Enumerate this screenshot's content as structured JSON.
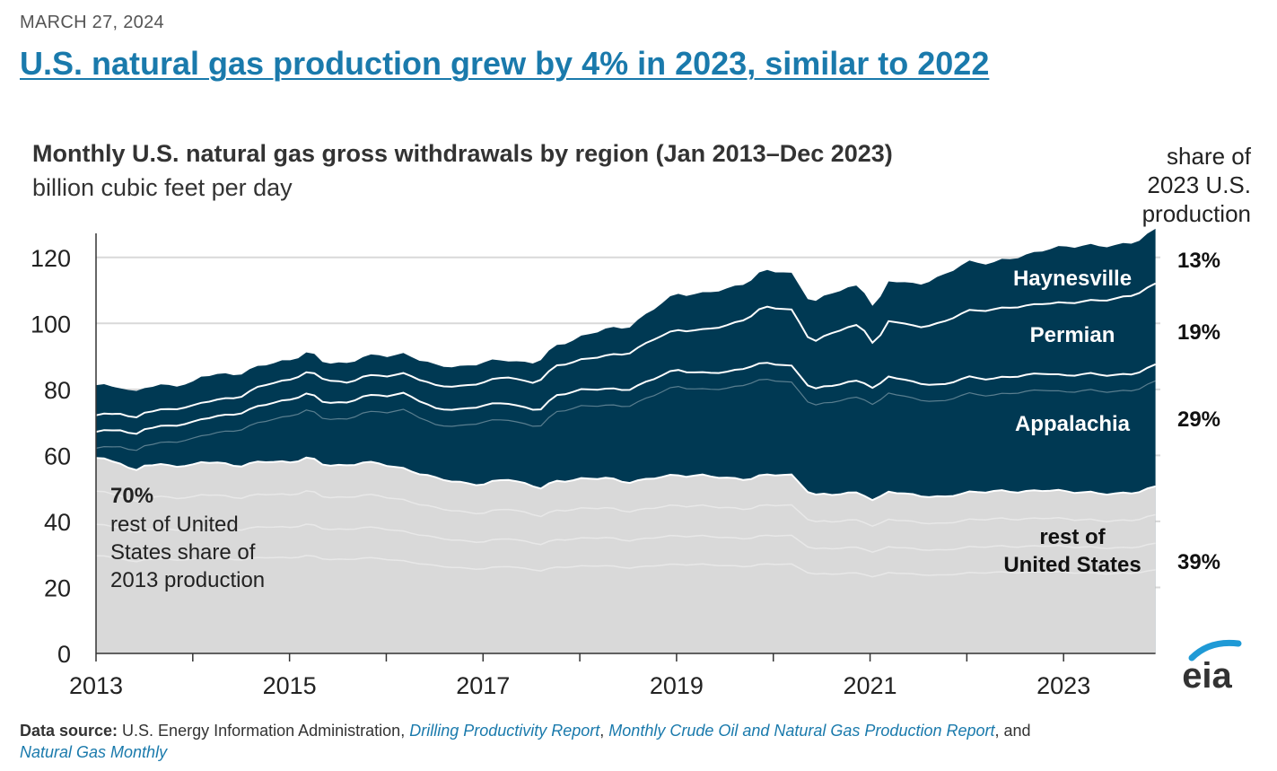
{
  "date": "MARCH 27, 2024",
  "headline": "U.S. natural gas production grew by 4% in 2023, similar to 2022",
  "share_header": [
    "share of",
    "2023 U.S.",
    "production"
  ],
  "source": {
    "label": "Data source:",
    "text_1": " U.S. Energy Information Administration, ",
    "link_1": "Drilling Productivity Report",
    "sep_1": ", ",
    "link_2": "Monthly Crude Oil and Natural Gas Production Report",
    "sep_2": ", and",
    "link_3": "Natural Gas Monthly"
  },
  "logo_text": "eia",
  "colors": {
    "dark_area": "#003953",
    "light_area": "#d9d9d9",
    "separator": "#ffffff",
    "headline_link": "#1a7aac",
    "grid": "#d9d9d9"
  },
  "chart_data": {
    "type": "area",
    "stacked": true,
    "title": "Monthly U.S. natural gas gross withdrawals by region  (Jan 2013–Dec 2023)",
    "subtitle": "billion cubic feet per day",
    "ylim": [
      0,
      130
    ],
    "yticks": [
      "0",
      "20",
      "40",
      "60",
      "80",
      "100",
      "120"
    ],
    "xticks": [
      "2013",
      "2015",
      "2017",
      "2019",
      "2021",
      "2023"
    ],
    "x_start": "Jan 2013",
    "x_end": "Dec 2023",
    "grid": "horizontal",
    "annotation_2013": {
      "pct": "70%",
      "lines": [
        "rest of United",
        "States share of",
        "2013 production"
      ]
    },
    "series_labels": [
      {
        "name": "Haynesville",
        "lines": [
          "Haynesville"
        ],
        "share": "13%"
      },
      {
        "name": "Permian",
        "lines": [
          "Permian"
        ],
        "share": "19%"
      },
      {
        "name": "Appalachia",
        "lines": [
          "Appalachia"
        ],
        "share": "29%"
      },
      {
        "name": "rest of United States",
        "lines": [
          "rest of",
          "United States"
        ],
        "share": "39%"
      }
    ],
    "keypoints": [
      {
        "year": 2013.0,
        "rest": 59,
        "appalachia": 67,
        "permian": 72,
        "total": 81
      },
      {
        "year": 2013.25,
        "rest": 58,
        "appalachia": 68,
        "permian": 73,
        "total": 81
      },
      {
        "year": 2013.4,
        "rest": 55,
        "appalachia": 66,
        "permian": 71,
        "total": 79
      },
      {
        "year": 2013.5,
        "rest": 57,
        "appalachia": 68,
        "permian": 73,
        "total": 80.5
      },
      {
        "year": 2014.0,
        "rest": 57,
        "appalachia": 70,
        "permian": 75,
        "total": 82
      },
      {
        "year": 2014.1,
        "rest": 58,
        "appalachia": 71,
        "permian": 76,
        "total": 84
      },
      {
        "year": 2014.5,
        "rest": 57,
        "appalachia": 73,
        "permian": 78,
        "total": 85
      },
      {
        "year": 2014.7,
        "rest": 58,
        "appalachia": 75,
        "permian": 81,
        "total": 87
      },
      {
        "year": 2015.0,
        "rest": 58,
        "appalachia": 77,
        "permian": 83,
        "total": 89
      },
      {
        "year": 2015.2,
        "rest": 59.5,
        "appalachia": 79,
        "permian": 85.5,
        "total": 91.5
      },
      {
        "year": 2015.35,
        "rest": 57,
        "appalachia": 76,
        "permian": 83,
        "total": 88
      },
      {
        "year": 2015.6,
        "rest": 57,
        "appalachia": 76,
        "permian": 82,
        "total": 88
      },
      {
        "year": 2015.75,
        "rest": 58,
        "appalachia": 78,
        "permian": 84,
        "total": 90
      },
      {
        "year": 2016.0,
        "rest": 57,
        "appalachia": 78,
        "permian": 84,
        "total": 90
      },
      {
        "year": 2016.2,
        "rest": 56,
        "appalachia": 79,
        "permian": 85,
        "total": 91
      },
      {
        "year": 2016.5,
        "rest": 53,
        "appalachia": 74,
        "permian": 81,
        "total": 87
      },
      {
        "year": 2016.75,
        "rest": 52,
        "appalachia": 74,
        "permian": 81,
        "total": 87
      },
      {
        "year": 2017.0,
        "rest": 51,
        "appalachia": 75,
        "permian": 82,
        "total": 88
      },
      {
        "year": 2017.25,
        "rest": 53,
        "appalachia": 76,
        "permian": 84,
        "total": 89
      },
      {
        "year": 2017.5,
        "rest": 51,
        "appalachia": 74,
        "permian": 82,
        "total": 88
      },
      {
        "year": 2017.6,
        "rest": 50,
        "appalachia": 74,
        "permian": 83,
        "total": 89
      },
      {
        "year": 2017.75,
        "rest": 52,
        "appalachia": 78,
        "permian": 87,
        "total": 93
      },
      {
        "year": 2018.0,
        "rest": 53,
        "appalachia": 80,
        "permian": 89,
        "total": 96
      },
      {
        "year": 2018.25,
        "rest": 53,
        "appalachia": 80,
        "permian": 90,
        "total": 98
      },
      {
        "year": 2018.5,
        "rest": 52,
        "appalachia": 80,
        "permian": 91,
        "total": 99
      },
      {
        "year": 2018.75,
        "rest": 53,
        "appalachia": 83,
        "permian": 95,
        "total": 104
      },
      {
        "year": 2019.0,
        "rest": 54,
        "appalachia": 86,
        "permian": 98,
        "total": 109
      },
      {
        "year": 2019.25,
        "rest": 54,
        "appalachia": 85,
        "permian": 98,
        "total": 109
      },
      {
        "year": 2019.5,
        "rest": 53,
        "appalachia": 85,
        "permian": 99,
        "total": 110
      },
      {
        "year": 2019.75,
        "rest": 53,
        "appalachia": 87,
        "permian": 102,
        "total": 113
      },
      {
        "year": 2019.9,
        "rest": 54,
        "appalachia": 88,
        "permian": 105,
        "total": 116
      },
      {
        "year": 2020.2,
        "rest": 54,
        "appalachia": 87,
        "permian": 104,
        "total": 115
      },
      {
        "year": 2020.4,
        "rest": 48,
        "appalachia": 80,
        "permian": 94,
        "total": 106
      },
      {
        "year": 2020.6,
        "rest": 48,
        "appalachia": 81,
        "permian": 97,
        "total": 109
      },
      {
        "year": 2020.9,
        "rest": 49,
        "appalachia": 83,
        "permian": 100,
        "total": 112
      },
      {
        "year": 2021.05,
        "rest": 46,
        "appalachia": 80,
        "permian": 93,
        "total": 104
      },
      {
        "year": 2021.2,
        "rest": 49,
        "appalachia": 84,
        "permian": 101,
        "total": 113
      },
      {
        "year": 2021.5,
        "rest": 48,
        "appalachia": 82,
        "permian": 99,
        "total": 112
      },
      {
        "year": 2021.75,
        "rest": 47,
        "appalachia": 81,
        "permian": 100,
        "total": 114
      },
      {
        "year": 2022.0,
        "rest": 49,
        "appalachia": 84,
        "permian": 104,
        "total": 119
      },
      {
        "year": 2022.25,
        "rest": 49,
        "appalachia": 83,
        "permian": 104,
        "total": 118
      },
      {
        "year": 2022.5,
        "rest": 49,
        "appalachia": 84,
        "permian": 105,
        "total": 120
      },
      {
        "year": 2022.75,
        "rest": 49.5,
        "appalachia": 85,
        "permian": 106,
        "total": 122
      },
      {
        "year": 2023.0,
        "rest": 49,
        "appalachia": 84,
        "permian": 106,
        "total": 123
      },
      {
        "year": 2023.25,
        "rest": 49,
        "appalachia": 85,
        "permian": 107,
        "total": 124
      },
      {
        "year": 2023.5,
        "rest": 48,
        "appalachia": 84,
        "permian": 107,
        "total": 123
      },
      {
        "year": 2023.75,
        "rest": 49,
        "appalachia": 85,
        "permian": 109,
        "total": 125
      },
      {
        "year": 2023.95,
        "rest": 50.5,
        "appalachia": 87.5,
        "permian": 112,
        "total": 128.5
      }
    ]
  }
}
